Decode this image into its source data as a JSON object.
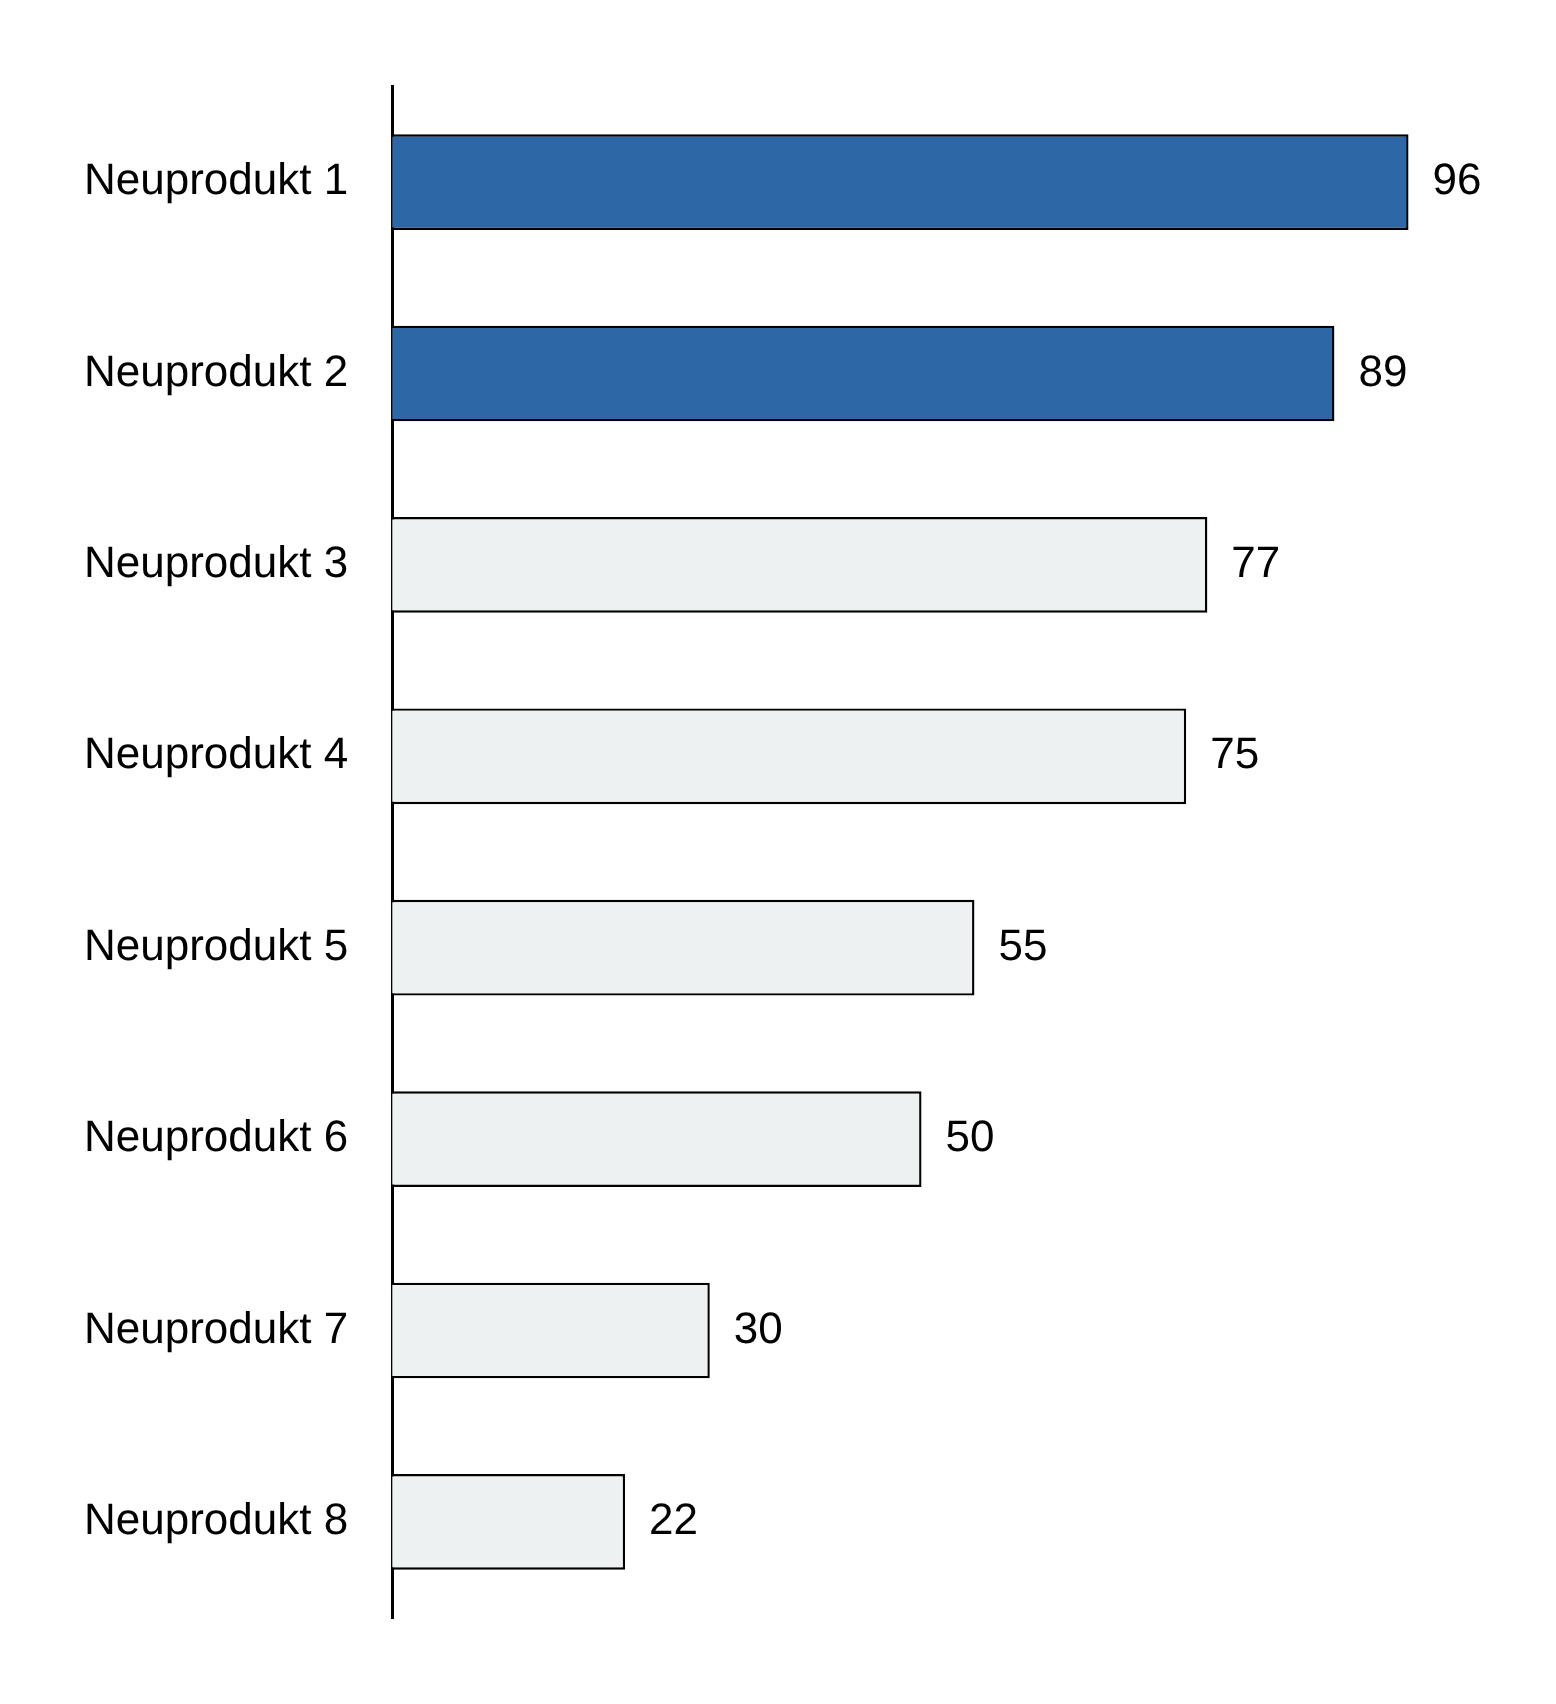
{
  "chart_data": {
    "type": "bar",
    "orientation": "horizontal",
    "categories": [
      "Neuprodukt 1",
      "Neuprodukt 2",
      "Neuprodukt 3",
      "Neuprodukt 4",
      "Neuprodukt 5",
      "Neuprodukt 6",
      "Neuprodukt 7",
      "Neuprodukt 8"
    ],
    "values": [
      96,
      89,
      77,
      75,
      55,
      50,
      30,
      22
    ],
    "colors": [
      "#2e67a6",
      "#2e67a6",
      "#eef1f2",
      "#eef1f2",
      "#eef1f2",
      "#eef1f2",
      "#eef1f2",
      "#eef1f2"
    ],
    "data_labels": true,
    "legend": false,
    "tick_labels": "y"
  }
}
